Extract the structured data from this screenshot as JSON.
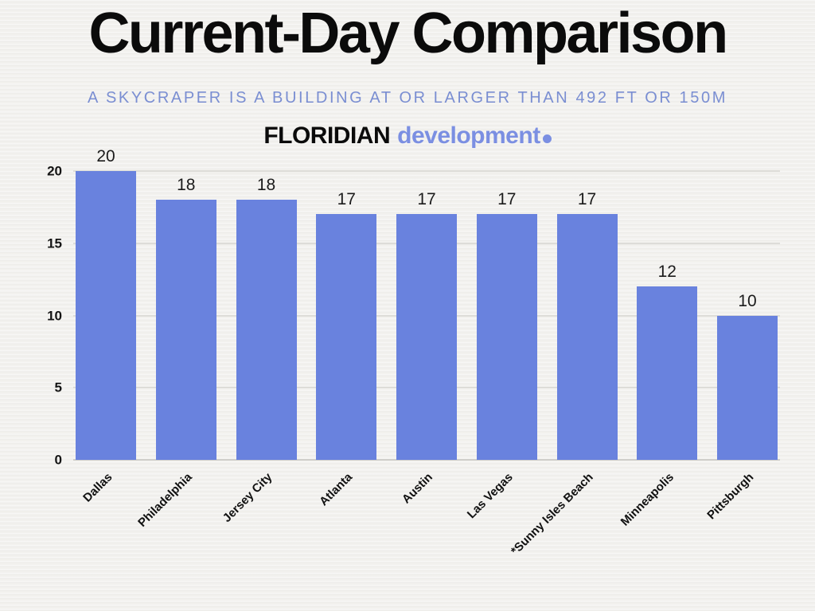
{
  "header": {
    "title": "Current-Day Comparison",
    "subtitle": "A SKYCRAPER IS A BUILDING AT OR LARGER THAN 492 FT OR 150M",
    "brand_primary": "FLORIDIAN",
    "brand_secondary": "development"
  },
  "theme": {
    "background": "#f2f1ee",
    "accent_blue": "#7b8fe2",
    "text_black": "#0b0b0b",
    "gridline": "#dddcd8"
  },
  "chart_data": {
    "type": "bar",
    "title": "Current-Day Comparison",
    "subtitle": "A SKYCRAPER IS A BUILDING AT OR LARGER THAN 492 FT OR 150M",
    "categories": [
      "Dallas",
      "Philadelphia",
      "Jersey City",
      "Atlanta",
      "Austin",
      "Las Vegas",
      "*Sunny Isles Beach",
      "Minneapolis",
      "Pittsburgh"
    ],
    "values": [
      20,
      18,
      18,
      17,
      17,
      17,
      17,
      12,
      10
    ],
    "xlabel": "",
    "ylabel": "",
    "ylim": [
      0,
      20
    ],
    "yticks": [
      0,
      5,
      10,
      15,
      20
    ],
    "bar_color": "#6982de",
    "grid": true,
    "legend": false
  }
}
